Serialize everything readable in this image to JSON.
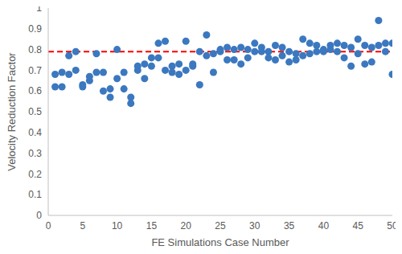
{
  "chart_data": {
    "type": "scatter",
    "x_label": "FE Simulations Case Number",
    "y_label": "Velocity Reduction Factor",
    "x": [
      1,
      1,
      2,
      2,
      3,
      3,
      4,
      4,
      5,
      5,
      6,
      6,
      7,
      7,
      8,
      8,
      9,
      9,
      10,
      10,
      11,
      11,
      12,
      12,
      13,
      13,
      14,
      14,
      15,
      15,
      16,
      16,
      17,
      17,
      18,
      18,
      19,
      19,
      20,
      20,
      21,
      21,
      22,
      22,
      23,
      23,
      24,
      24,
      25,
      25,
      26,
      26,
      27,
      27,
      28,
      28,
      29,
      29,
      30,
      30,
      31,
      31,
      32,
      32,
      33,
      33,
      34,
      34,
      35,
      35,
      36,
      36,
      37,
      37,
      38,
      38,
      39,
      39,
      40,
      40,
      41,
      41,
      42,
      42,
      43,
      43,
      44,
      44,
      45,
      45,
      46,
      46,
      47,
      47,
      48,
      48,
      49,
      49,
      50,
      50
    ],
    "values": [
      0.68,
      0.62,
      0.69,
      0.62,
      0.77,
      0.68,
      0.79,
      0.7,
      0.63,
      0.62,
      0.67,
      0.65,
      0.78,
      0.69,
      0.69,
      0.6,
      0.61,
      0.57,
      0.8,
      0.66,
      0.69,
      0.61,
      0.57,
      0.54,
      0.72,
      0.7,
      0.73,
      0.66,
      0.76,
      0.72,
      0.83,
      0.76,
      0.84,
      0.7,
      0.72,
      0.69,
      0.73,
      0.68,
      0.84,
      0.7,
      0.73,
      0.72,
      0.79,
      0.63,
      0.87,
      0.77,
      0.78,
      0.69,
      0.8,
      0.79,
      0.81,
      0.75,
      0.8,
      0.75,
      0.81,
      0.73,
      0.8,
      0.76,
      0.83,
      0.79,
      0.81,
      0.79,
      0.79,
      0.76,
      0.82,
      0.75,
      0.81,
      0.77,
      0.79,
      0.74,
      0.78,
      0.75,
      0.85,
      0.77,
      0.83,
      0.78,
      0.82,
      0.79,
      0.8,
      0.79,
      0.82,
      0.8,
      0.83,
      0.79,
      0.82,
      0.76,
      0.81,
      0.72,
      0.85,
      0.78,
      0.82,
      0.73,
      0.81,
      0.74,
      0.94,
      0.82,
      0.83,
      0.79,
      0.83,
      0.68
    ],
    "color": "#3b78bf",
    "marker": "circle",
    "xlim": [
      0,
      50
    ],
    "xticks": [
      0,
      5,
      10,
      15,
      20,
      25,
      30,
      35,
      40,
      45,
      50
    ],
    "ylim": [
      0,
      1
    ],
    "yticks": [
      0,
      0.1,
      0.2,
      0.3,
      0.4,
      0.5,
      0.6,
      0.7,
      0.8,
      0.9,
      1
    ],
    "grid": false,
    "reference_line": {
      "value": 0.79,
      "color": "#ff0000",
      "line_style": "dashed"
    }
  }
}
